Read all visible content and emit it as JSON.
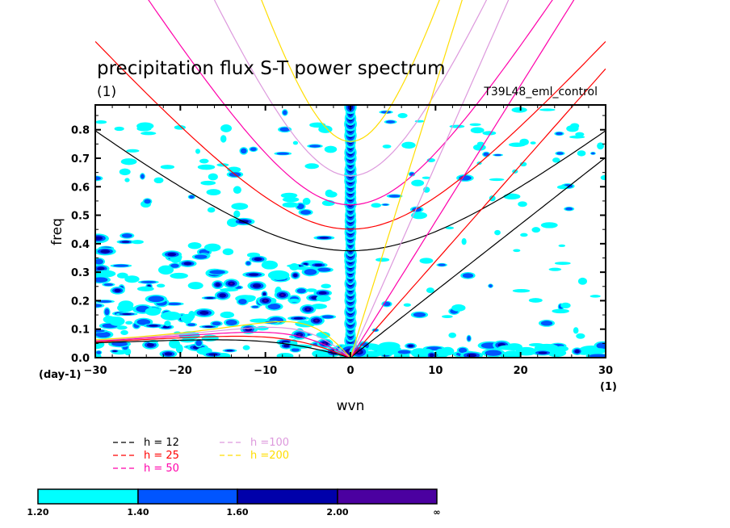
{
  "chart_data": {
    "type": "heatmap",
    "title": "precipitation flux S-T power spectrum",
    "subtitle_left": "(1)",
    "subtitle_right": "T39L48_eml_control",
    "xlabel": "wvn",
    "ylabel": "freq",
    "x_unit_label": "(1)",
    "y_unit_label": "(day-1)",
    "xlim": [
      -30,
      30
    ],
    "ylim": [
      0.0,
      0.887
    ],
    "x_ticks": [
      -30,
      -20,
      -10,
      0,
      10,
      20,
      30
    ],
    "x_tick_labels": [
      "-30",
      "-20",
      "-10",
      "0",
      "10",
      "20",
      "30"
    ],
    "y_ticks": [
      0.0,
      0.1,
      0.2,
      0.3,
      0.4,
      0.5,
      0.6,
      0.7,
      0.8
    ],
    "y_tick_labels": [
      "0.0",
      "0.1",
      "0.2",
      "0.3",
      "0.4",
      "0.5",
      "0.6",
      "0.7",
      "0.8"
    ],
    "x_minor_step": 2,
    "y_minor_step": 0.05,
    "grid": false,
    "contour_levels": {
      "bounds": [
        1.2,
        1.4,
        1.6,
        2.0
      ],
      "labels": [
        "1.20",
        "1.40",
        "1.60",
        "2.00",
        "∞"
      ],
      "colors": [
        "#00ffff",
        "#0055ff",
        "#0000aa",
        "#4b00a0"
      ]
    },
    "dispersion_curves": {
      "equivalent_depths_m": [
        12,
        25,
        50,
        100,
        200
      ],
      "legend": [
        {
          "label": "h = 12",
          "color": "#000000"
        },
        {
          "label": "h = 25",
          "color": "#ff0000"
        },
        {
          "label": "h = 50",
          "color": "#ff00aa"
        },
        {
          "label": "h =100",
          "color": "#dd99dd"
        },
        {
          "label": "h =200",
          "color": "#ffdd00"
        }
      ],
      "kelvin_frequency_at_wvn30": [
        0.69,
        1.0,
        1.41,
        2.0,
        2.82
      ],
      "ig_minimum_frequency": [
        0.37,
        0.44,
        0.53,
        0.63,
        0.75
      ],
      "rossby_peak_frequency": [
        0.065,
        0.077,
        0.092,
        0.107,
        0.125
      ]
    },
    "spectral_features": [
      {
        "description": "strong vertical band at wvn 0 across all freq",
        "wvn": 0,
        "freq_range": [
          0.0,
          0.887
        ],
        "level": "∞"
      },
      {
        "description": "enhanced power westward low-frequency region",
        "wvn_range": [
          -30,
          -2
        ],
        "freq_range": [
          0.0,
          0.5
        ],
        "level": "1.20-2.00"
      },
      {
        "description": "max cluster near wvn -8 freq 0.22",
        "wvn": -8,
        "freq": 0.22,
        "level": "2.00"
      },
      {
        "description": "eastward low-frequency band",
        "wvn_range": [
          0,
          30
        ],
        "freq_range": [
          0.0,
          0.05
        ],
        "level": "1.20-1.60"
      }
    ],
    "legend_placement": "bottom-left"
  }
}
